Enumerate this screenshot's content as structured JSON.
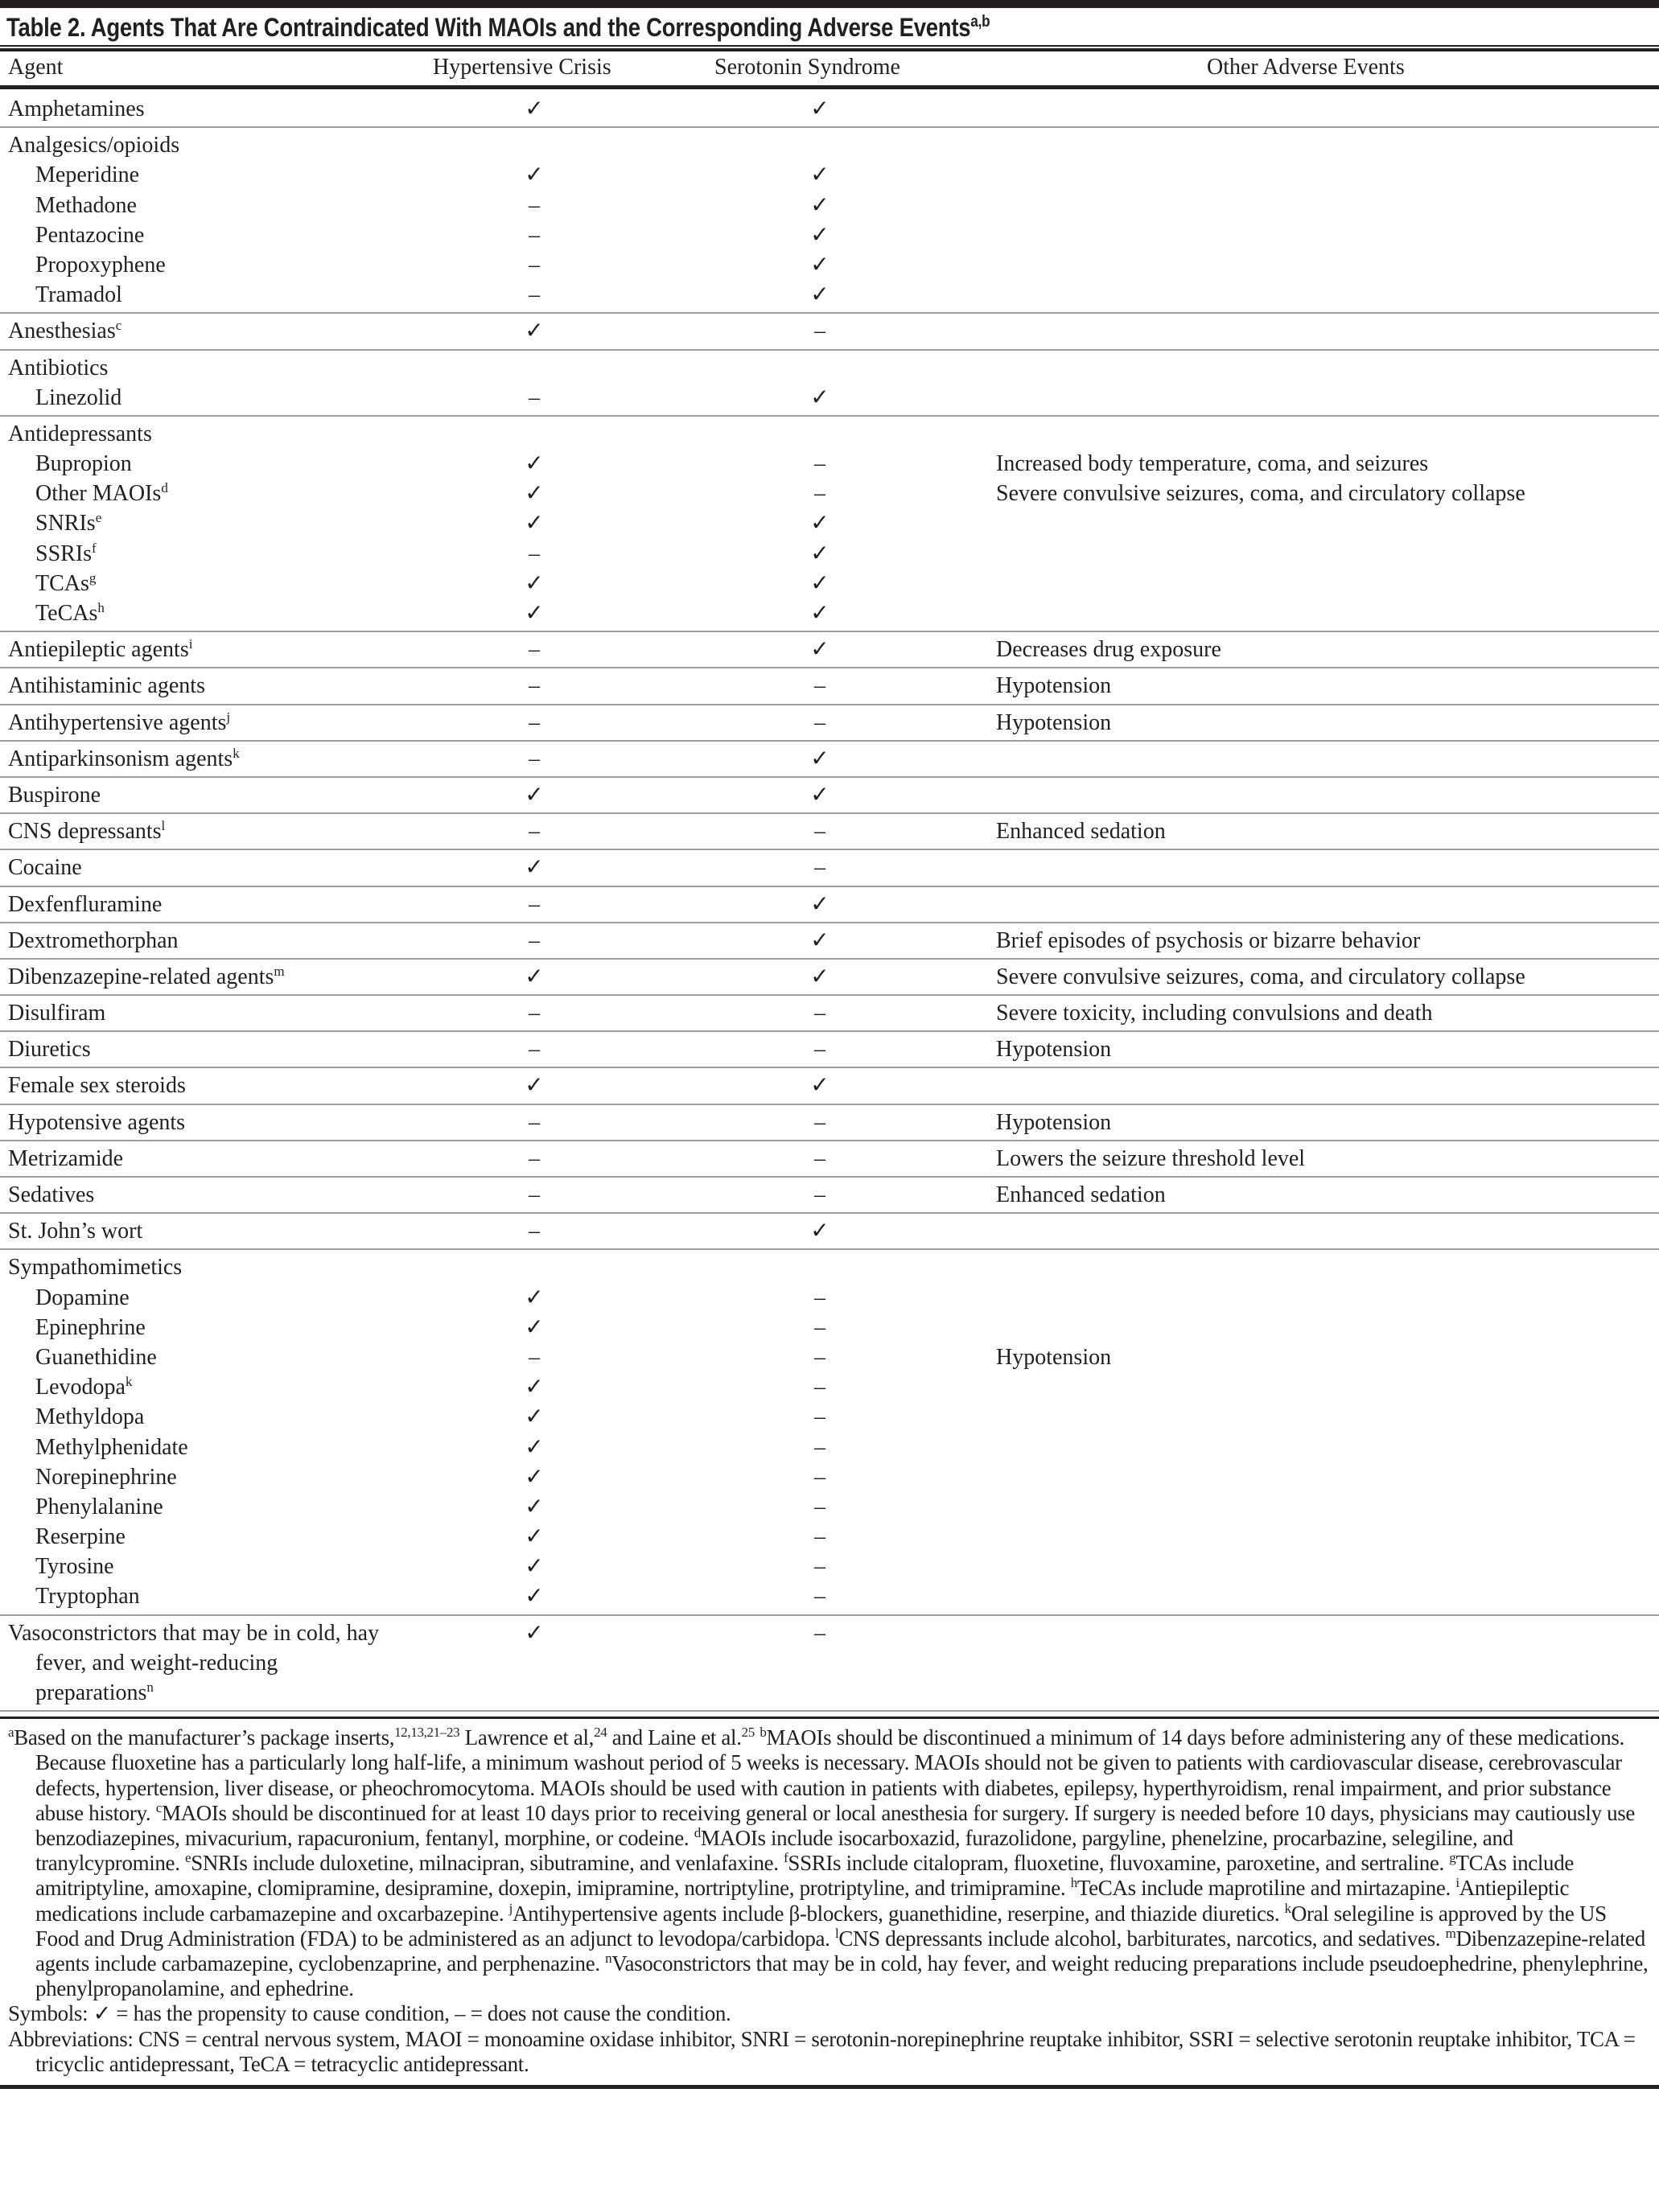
{
  "title": {
    "text": "Table 2. Agents That Are Contraindicated With MAOIs and the Corresponding Adverse Events",
    "sup": "a,b"
  },
  "columns": {
    "agent": "Agent",
    "hc": "Hypertensive Crisis",
    "ss": "Serotonin Syndrome",
    "other": "Other Adverse Events"
  },
  "symbols": {
    "check": "✓",
    "dash": "–"
  },
  "rows": [
    {
      "agent": "Amphetamines",
      "hc": "✓",
      "ss": "✓"
    },
    {
      "agent": "Analgesics/opioids",
      "children": [
        {
          "agent": "Meperidine",
          "hc": "✓",
          "ss": "✓"
        },
        {
          "agent": "Methadone",
          "hc": "–",
          "ss": "✓"
        },
        {
          "agent": "Pentazocine",
          "hc": "–",
          "ss": "✓"
        },
        {
          "agent": "Propoxyphene",
          "hc": "–",
          "ss": "✓"
        },
        {
          "agent": "Tramadol",
          "hc": "–",
          "ss": "✓"
        }
      ]
    },
    {
      "agent": "Anesthesias",
      "sup": "c",
      "hc": "✓",
      "ss": "–"
    },
    {
      "agent": "Antibiotics",
      "children": [
        {
          "agent": "Linezolid",
          "hc": "–",
          "ss": "✓"
        }
      ]
    },
    {
      "agent": "Antidepressants",
      "children": [
        {
          "agent": "Bupropion",
          "hc": "✓",
          "ss": "–",
          "other": "Increased body temperature, coma, and seizures"
        },
        {
          "agent": "Other MAOIs",
          "sup": "d",
          "hc": "✓",
          "ss": "–",
          "other": "Severe convulsive seizures, coma, and circulatory collapse"
        },
        {
          "agent": "SNRIs",
          "sup": "e",
          "hc": "✓",
          "ss": "✓"
        },
        {
          "agent": "SSRIs",
          "sup": "f",
          "hc": "–",
          "ss": "✓"
        },
        {
          "agent": "TCAs",
          "sup": "g",
          "hc": "✓",
          "ss": "✓"
        },
        {
          "agent": "TeCAs",
          "sup": "h",
          "hc": "✓",
          "ss": "✓"
        }
      ]
    },
    {
      "agent": "Antiepileptic agents",
      "sup": "i",
      "hc": "–",
      "ss": "✓",
      "other": "Decreases drug exposure"
    },
    {
      "agent": "Antihistaminic agents",
      "hc": "–",
      "ss": "–",
      "other": "Hypotension"
    },
    {
      "agent": "Antihypertensive agents",
      "sup": "j",
      "hc": "–",
      "ss": "–",
      "other": "Hypotension"
    },
    {
      "agent": "Antiparkinsonism agents",
      "sup": "k",
      "hc": "–",
      "ss": "✓"
    },
    {
      "agent": "Buspirone",
      "hc": "✓",
      "ss": "✓"
    },
    {
      "agent": "CNS depressants",
      "sup": "l",
      "hc": "–",
      "ss": "–",
      "other": "Enhanced sedation"
    },
    {
      "agent": "Cocaine",
      "hc": "✓",
      "ss": "–"
    },
    {
      "agent": "Dexfenfluramine",
      "hc": "–",
      "ss": "✓"
    },
    {
      "agent": "Dextromethorphan",
      "hc": "–",
      "ss": "✓",
      "other": "Brief episodes of psychosis or bizarre behavior"
    },
    {
      "agent": "Dibenzazepine-related agents",
      "sup": "m",
      "hc": "✓",
      "ss": "✓",
      "other": "Severe convulsive seizures, coma, and circulatory collapse"
    },
    {
      "agent": "Disulfiram",
      "hc": "–",
      "ss": "–",
      "other": "Severe toxicity, including convulsions and death"
    },
    {
      "agent": "Diuretics",
      "hc": "–",
      "ss": "–",
      "other": "Hypotension"
    },
    {
      "agent": "Female sex steroids",
      "hc": "✓",
      "ss": "✓"
    },
    {
      "agent": "Hypotensive agents",
      "hc": "–",
      "ss": "–",
      "other": "Hypotension"
    },
    {
      "agent": "Metrizamide",
      "hc": "–",
      "ss": "–",
      "other": "Lowers the seizure threshold level"
    },
    {
      "agent": "Sedatives",
      "hc": "–",
      "ss": "–",
      "other": "Enhanced sedation"
    },
    {
      "agent": "St. John’s wort",
      "hc": "–",
      "ss": "✓"
    },
    {
      "agent": "Sympathomimetics",
      "children": [
        {
          "agent": "Dopamine",
          "hc": "✓",
          "ss": "–"
        },
        {
          "agent": "Epinephrine",
          "hc": "✓",
          "ss": "–"
        },
        {
          "agent": "Guanethidine",
          "hc": "–",
          "ss": "–",
          "other": "Hypotension"
        },
        {
          "agent": "Levodopa",
          "sup": "k",
          "hc": "✓",
          "ss": "–"
        },
        {
          "agent": "Methyldopa",
          "hc": "✓",
          "ss": "–"
        },
        {
          "agent": "Methylphenidate",
          "hc": "✓",
          "ss": "–"
        },
        {
          "agent": "Norepinephrine",
          "hc": "✓",
          "ss": "–"
        },
        {
          "agent": "Phenylalanine",
          "hc": "✓",
          "ss": "–"
        },
        {
          "agent": "Reserpine",
          "hc": "✓",
          "ss": "–"
        },
        {
          "agent": "Tyrosine",
          "hc": "✓",
          "ss": "–"
        },
        {
          "agent": "Tryptophan",
          "hc": "✓",
          "ss": "–"
        }
      ]
    },
    {
      "agent": "Vasoconstrictors that may be in cold, hay fever, and weight-reducing preparations",
      "sup": "n",
      "hc": "✓",
      "ss": "–",
      "wrap": true
    }
  ],
  "footnotes": {
    "a_sup": "a",
    "a_text1": "Based on the manufacturer’s package inserts,",
    "a_ref1": "12,13,21–23",
    "a_text2": " Lawrence et al,",
    "a_ref2": "24",
    "a_text3": " and Laine et al.",
    "a_ref3": "25",
    "notes": [
      {
        "sup": "b",
        "text": "MAOIs should be discontinued a minimum of 14 days before administering any of these medications. Because fluoxetine has a particularly long half-life, a minimum washout period of 5 weeks is necessary. MAOIs should not be given to patients with cardiovascular disease, cerebrovascular defects, hypertension, liver disease, or pheochromocytoma. MAOIs should be used with caution in patients with diabetes, epilepsy, hyperthyroidism, renal impairment, and prior substance abuse history."
      },
      {
        "sup": "c",
        "text": "MAOIs should be discontinued for at least 10 days prior to receiving general or local anesthesia for surgery. If surgery is needed before 10 days, physicians may cautiously use benzodiazepines, mivacurium, rapacuronium, fentanyl, morphine, or codeine."
      },
      {
        "sup": "d",
        "text": "MAOIs include isocarboxazid, furazolidone, pargyline, phenelzine, procarbazine, selegiline, and tranylcypromine."
      },
      {
        "sup": "e",
        "text": "SNRIs include duloxetine, milnacipran, sibutramine, and venlafaxine."
      },
      {
        "sup": "f",
        "text": "SSRIs include citalopram, fluoxetine, fluvoxamine, paroxetine, and sertraline."
      },
      {
        "sup": "g",
        "text": "TCAs include amitriptyline, amoxapine, clomipramine, desipramine, doxepin, imipramine, nortriptyline, protriptyline, and trimipramine."
      },
      {
        "sup": "h",
        "text": "TeCAs include maprotiline and mirtazapine."
      },
      {
        "sup": "i",
        "text": "Antiepileptic medications include carbamazepine and oxcarbazepine."
      },
      {
        "sup": "j",
        "text": "Antihypertensive agents include β-blockers, guanethidine, reserpine, and thiazide diuretics."
      },
      {
        "sup": "k",
        "text": "Oral selegiline is approved by the US Food and Drug Administration (FDA) to be administered as an adjunct to levodopa/carbidopa."
      },
      {
        "sup": "l",
        "text": "CNS depressants include alcohol, barbiturates, narcotics, and sedatives."
      },
      {
        "sup": "m",
        "text": "Dibenzazepine-related agents include carbamazepine, cyclobenzaprine, and perphenazine."
      },
      {
        "sup": "n",
        "text": "Vasoconstrictors that may be in cold, hay fever, and weight reducing preparations include pseudoephedrine, phenylephrine, phenylpropanolamine, and ephedrine."
      }
    ],
    "symbols": "Symbols: ✓ = has the propensity to cause condition, – = does not cause the condition.",
    "abbreviations": "Abbreviations: CNS = central nervous system, MAOI = monoamine oxidase inhibitor, SNRI = serotonin-norepinephrine reuptake inhibitor, SSRI = selective serotonin reuptake inhibitor, TCA = tricyclic antidepressant, TeCA = tetracyclic antidepressant."
  }
}
